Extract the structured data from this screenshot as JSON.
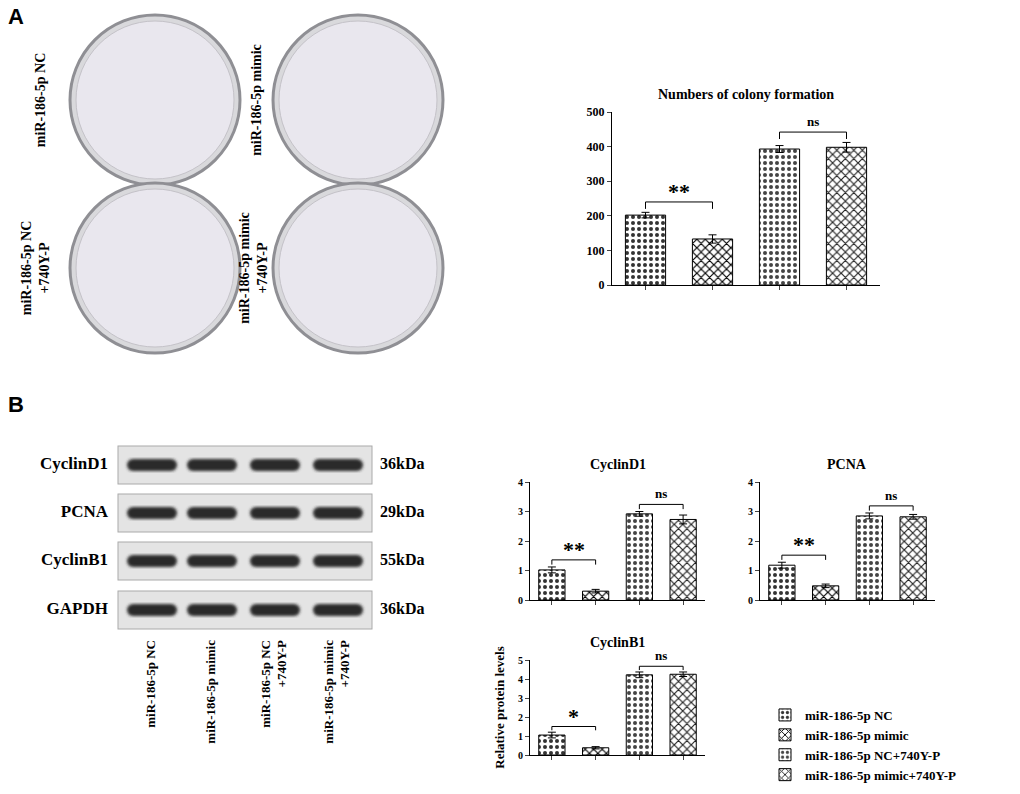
{
  "panels": [
    "A",
    "B"
  ],
  "plates": [
    {
      "lines": [
        "miR-186-5p NC"
      ]
    },
    {
      "lines": [
        "miR-186-5p mimic"
      ]
    },
    {
      "lines": [
        "miR-186-5p NC",
        "+740Y-P"
      ]
    },
    {
      "lines": [
        "miR-186-5p mimic",
        "+740Y-P"
      ]
    }
  ],
  "blot": {
    "rows": [
      {
        "label": "CyclinD1",
        "size": "36kDa"
      },
      {
        "label": "PCNA",
        "size": "29kDa"
      },
      {
        "label": "CyclinB1",
        "size": "55kDa"
      },
      {
        "label": "GAPDH",
        "size": "36kDa"
      }
    ],
    "lanes": [
      [
        "miR-186-5p NC"
      ],
      [
        "miR-186-5p mimic"
      ],
      [
        "miR-186-5p NC",
        "+740Y-P"
      ],
      [
        "miR-186-5p mimic",
        "+740Y-P"
      ]
    ]
  },
  "chart_data": [
    {
      "type": "bar",
      "title": "Numbers of colony formation",
      "categories": [
        "miR-186-5p NC",
        "miR-186-5p mimic",
        "miR-186-5p NC+740Y-P",
        "miR-186-5p mimic+740Y-P"
      ],
      "values": [
        202,
        133,
        393,
        398
      ],
      "errors": [
        8,
        12,
        10,
        14
      ],
      "colors": [
        "#ffffff",
        "#ffffff",
        "#a6a6a6",
        "#a6a6a6"
      ],
      "ylim": [
        0,
        500
      ],
      "yticks": [
        0,
        100,
        200,
        300,
        400,
        500
      ],
      "tick_labels": "y",
      "annotations": [
        {
          "from": 0,
          "to": 1,
          "text": "**"
        },
        {
          "from": 2,
          "to": 3,
          "text": "ns"
        }
      ]
    },
    {
      "type": "bar",
      "title": "CyclinD1",
      "categories": [
        "miR-186-5p NC",
        "miR-186-5p mimic",
        "miR-186-5p NC+740Y-P",
        "miR-186-5p mimic+740Y-P"
      ],
      "values": [
        1.02,
        0.3,
        2.92,
        2.73
      ],
      "errors": [
        0.1,
        0.06,
        0.08,
        0.15
      ],
      "colors": [
        "#ffffff",
        "#ffffff",
        "#a6a6a6",
        "#a6a6a6"
      ],
      "ylim": [
        0,
        4
      ],
      "yticks": [
        0,
        1,
        2,
        3,
        4
      ],
      "tick_labels": "y",
      "annotations": [
        {
          "from": 0,
          "to": 1,
          "text": "**"
        },
        {
          "from": 2,
          "to": 3,
          "text": "ns"
        }
      ]
    },
    {
      "type": "bar",
      "title": "PCNA",
      "categories": [
        "miR-186-5p NC",
        "miR-186-5p mimic",
        "miR-186-5p NC+740Y-P",
        "miR-186-5p mimic+740Y-P"
      ],
      "values": [
        1.18,
        0.48,
        2.85,
        2.82
      ],
      "errors": [
        0.1,
        0.06,
        0.1,
        0.08
      ],
      "colors": [
        "#ffffff",
        "#ffffff",
        "#a6a6a6",
        "#a6a6a6"
      ],
      "ylim": [
        0,
        4
      ],
      "yticks": [
        0,
        1,
        2,
        3,
        4
      ],
      "tick_labels": "y",
      "annotations": [
        {
          "from": 0,
          "to": 1,
          "text": "**"
        },
        {
          "from": 2,
          "to": 3,
          "text": "ns"
        }
      ]
    },
    {
      "type": "bar",
      "title": "CyclinB1",
      "y_label": "Relative protein levels",
      "categories": [
        "miR-186-5p NC",
        "miR-186-5p mimic",
        "miR-186-5p NC+740Y-P",
        "miR-186-5p mimic+740Y-P"
      ],
      "values": [
        1.05,
        0.38,
        4.22,
        4.25
      ],
      "errors": [
        0.15,
        0.06,
        0.15,
        0.12
      ],
      "colors": [
        "#ffffff",
        "#ffffff",
        "#a6a6a6",
        "#a6a6a6"
      ],
      "ylim": [
        0,
        5
      ],
      "yticks": [
        0,
        1,
        2,
        3,
        4,
        5
      ],
      "tick_labels": "y",
      "legend": "bottom right",
      "annotations": [
        {
          "from": 0,
          "to": 1,
          "text": "*"
        },
        {
          "from": 2,
          "to": 3,
          "text": "ns"
        }
      ]
    }
  ]
}
